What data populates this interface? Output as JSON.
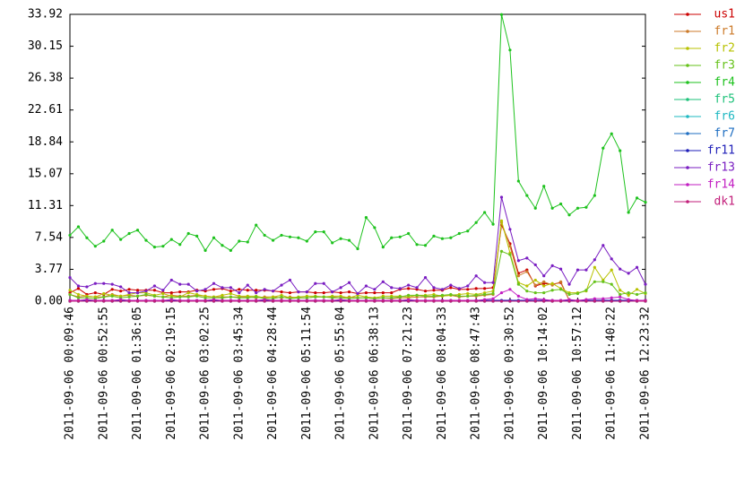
{
  "chart_data": {
    "type": "line",
    "categories": [
      "2011-09-06 00:09:46",
      null,
      null,
      null,
      "2011-09-06 00:52:55",
      null,
      null,
      null,
      "2011-09-06 01:36:05",
      null,
      null,
      null,
      "2011-09-06 02:19:15",
      null,
      null,
      null,
      "2011-09-06 03:02:25",
      null,
      null,
      null,
      "2011-09-06 03:45:34",
      null,
      null,
      null,
      "2011-09-06 04:28:44",
      null,
      null,
      null,
      "2011-09-06 05:11:54",
      null,
      null,
      null,
      "2011-09-06 05:55:04",
      null,
      null,
      null,
      "2011-09-06 06:38:13",
      null,
      null,
      null,
      "2011-09-06 07:21:23",
      null,
      null,
      null,
      "2011-09-06 08:04:33",
      null,
      null,
      null,
      "2011-09-06 08:47:43",
      null,
      null,
      null,
      "2011-09-06 09:30:52",
      null,
      null,
      null,
      "2011-09-06 10:14:02",
      null,
      null,
      null,
      "2011-09-06 10:57:12",
      null,
      null,
      null,
      "2011-09-06 11:40:22",
      null,
      null,
      null,
      "2011-09-06 12:23:32"
    ],
    "ylim": [
      0,
      33.92
    ],
    "yticks": [
      {
        "value": 0,
        "label": "0.00"
      },
      3.77,
      7.54,
      11.31,
      15.07,
      18.84,
      22.61,
      26.38,
      30.15,
      33.92
    ],
    "legend": "right",
    "series": [
      {
        "name": "us1",
        "color": "#cc0000",
        "values": [
          1.0,
          1.5,
          0.8,
          1.0,
          0.8,
          1.4,
          1.2,
          1.4,
          1.3,
          1.3,
          1.3,
          1.0,
          1.0,
          1.1,
          1.1,
          1.3,
          1.2,
          1.4,
          1.5,
          1.2,
          1.4,
          1.3,
          1.3,
          1.3,
          1.2,
          1.1,
          1.0,
          1.1,
          1.1,
          1.0,
          1.0,
          1.1,
          1.0,
          1.1,
          0.9,
          1.0,
          1.0,
          1.0,
          1.0,
          1.4,
          1.5,
          1.4,
          1.2,
          1.3,
          1.3,
          1.6,
          1.4,
          1.4,
          1.5,
          1.5,
          1.6,
          9.0,
          6.8,
          3.3,
          3.7,
          1.8,
          2.1,
          2.0,
          2.2,
          0.1,
          0.1,
          0.1,
          0.1,
          0.1,
          0.1,
          0.1,
          0.1,
          0.1,
          0.1
        ]
      },
      {
        "name": "fr1",
        "color": "#cc7a29",
        "values": [
          0.8,
          0.5,
          0.6,
          0.5,
          0.5,
          0.8,
          0.6,
          0.7,
          0.6,
          0.7,
          0.6,
          0.5,
          0.7,
          0.6,
          0.6,
          0.7,
          0.6,
          0.5,
          0.5,
          0.5,
          0.5,
          0.5,
          0.4,
          0.5,
          0.5,
          0.4,
          0.5,
          0.4,
          0.4,
          0.5,
          0.5,
          0.5,
          0.4,
          0.5,
          0.4,
          0.4,
          0.3,
          0.4,
          0.3,
          0.4,
          0.4,
          0.5,
          0.5,
          0.5,
          0.6,
          0.7,
          0.5,
          0.6,
          0.6,
          0.7,
          0.8,
          9.3,
          6.5,
          3.0,
          3.5,
          1.9,
          2.3,
          1.9,
          2.3,
          0.1,
          0.1,
          0.1,
          0.1,
          0.1,
          0.1,
          0.1,
          0.1,
          0.1,
          0.1
        ]
      },
      {
        "name": "fr2",
        "color": "#b8c200",
        "values": [
          1.3,
          0.8,
          0.6,
          0.5,
          0.9,
          0.7,
          0.6,
          0.8,
          1.0,
          1.0,
          0.7,
          0.9,
          0.6,
          0.5,
          1.0,
          0.8,
          0.6,
          0.5,
          0.7,
          0.9,
          0.6,
          0.6,
          0.6,
          0.4,
          0.5,
          0.7,
          0.4,
          0.5,
          0.6,
          0.6,
          0.5,
          0.6,
          0.6,
          0.4,
          0.7,
          0.5,
          0.4,
          0.6,
          0.6,
          0.6,
          0.5,
          0.7,
          0.7,
          0.8,
          0.6,
          0.7,
          0.8,
          0.9,
          0.8,
          1.0,
          1.2,
          9.5,
          5.7,
          2.2,
          1.8,
          2.5,
          1.8,
          2.1,
          1.5,
          1.0,
          1.0,
          1.2,
          4.0,
          2.5,
          3.7,
          1.3,
          0.7,
          1.4,
          0.9
        ]
      },
      {
        "name": "fr3",
        "color": "#66c21a",
        "values": [
          0.8,
          0.4,
          0.4,
          0.3,
          0.5,
          0.6,
          0.4,
          0.5,
          0.6,
          0.8,
          0.6,
          0.5,
          0.4,
          0.5,
          0.5,
          0.6,
          0.4,
          0.4,
          0.4,
          0.5,
          0.4,
          0.4,
          0.5,
          0.3,
          0.3,
          0.5,
          0.3,
          0.4,
          0.4,
          0.5,
          0.5,
          0.4,
          0.4,
          0.3,
          0.4,
          0.4,
          0.3,
          0.4,
          0.4,
          0.5,
          0.7,
          0.7,
          0.6,
          0.6,
          0.7,
          0.8,
          0.6,
          0.6,
          0.7,
          0.8,
          0.9,
          5.9,
          5.5,
          2.0,
          1.2,
          1.0,
          1.0,
          1.3,
          1.4,
          0.8,
          0.9,
          1.3,
          2.3,
          2.3,
          2.0,
          0.8,
          1.0,
          0.8,
          1.0
        ]
      },
      {
        "name": "fr4",
        "color": "#1ec21e",
        "values": [
          7.8,
          8.8,
          7.5,
          6.5,
          7.1,
          8.4,
          7.3,
          8.0,
          8.4,
          7.2,
          6.4,
          6.5,
          7.3,
          6.7,
          8.0,
          7.7,
          6.0,
          7.5,
          6.6,
          6.0,
          7.1,
          7.0,
          9.0,
          7.8,
          7.2,
          7.8,
          7.6,
          7.5,
          7.1,
          8.2,
          8.2,
          6.9,
          7.4,
          7.2,
          6.2,
          9.9,
          8.7,
          6.4,
          7.5,
          7.6,
          8.0,
          6.7,
          6.6,
          7.7,
          7.4,
          7.5,
          8.0,
          8.3,
          9.3,
          10.5,
          9.1,
          33.9,
          29.7,
          14.2,
          12.5,
          11.0,
          13.6,
          11.0,
          11.5,
          10.2,
          11.0,
          11.1,
          12.5,
          18.1,
          19.8,
          17.8,
          10.5,
          12.2,
          11.7
        ]
      },
      {
        "name": "fr5",
        "color": "#1ec27a",
        "values": [
          0,
          0,
          0,
          0,
          0,
          0,
          0,
          0,
          0,
          0,
          0,
          0,
          0,
          0,
          0,
          0,
          0,
          0,
          0,
          0,
          0,
          0,
          0,
          0,
          0,
          0,
          0,
          0,
          0,
          0,
          0,
          0,
          0,
          0,
          0,
          0,
          0,
          0,
          0,
          0,
          0,
          0,
          0,
          0,
          0,
          0,
          0,
          0,
          0,
          0,
          0,
          0,
          0,
          0,
          0,
          0,
          0,
          0,
          0,
          0,
          0,
          0,
          0,
          0,
          0,
          0,
          0,
          0,
          0
        ]
      },
      {
        "name": "fr6",
        "color": "#1eb8c2",
        "values": [
          0,
          0,
          0,
          0,
          0,
          0,
          0,
          0,
          0,
          0,
          0,
          0,
          0,
          0,
          0,
          0,
          0,
          0,
          0,
          0,
          0,
          0,
          0,
          0,
          0,
          0,
          0,
          0,
          0,
          0,
          0,
          0,
          0,
          0,
          0,
          0,
          0,
          0,
          0,
          0,
          0,
          0,
          0,
          0,
          0,
          0,
          0,
          0,
          0,
          0,
          0,
          0,
          0,
          0,
          0,
          0,
          0,
          0,
          0,
          0,
          0,
          0,
          0,
          0,
          0,
          0,
          0,
          0,
          0
        ]
      },
      {
        "name": "fr7",
        "color": "#1e6ec2",
        "values": [
          0,
          0,
          0,
          0,
          0,
          0,
          0,
          0,
          0,
          0,
          0,
          0,
          0,
          0,
          0,
          0,
          0,
          0,
          0,
          0,
          0,
          0,
          0,
          0,
          0,
          0,
          0,
          0,
          0,
          0,
          0,
          0,
          0,
          0,
          0,
          0,
          0,
          0,
          0,
          0,
          0,
          0,
          0,
          0,
          0,
          0,
          0,
          0,
          0,
          0,
          0,
          0,
          0,
          0,
          0,
          0,
          0,
          0,
          0,
          0,
          0,
          0,
          0,
          0,
          0,
          0,
          0,
          0,
          0
        ]
      },
      {
        "name": "fr11",
        "color": "#1e1eb8",
        "values": [
          0.1,
          0.1,
          0.1,
          0.1,
          0.1,
          0.1,
          0.1,
          0.1,
          0.1,
          0.1,
          0.1,
          0.1,
          0.1,
          0.1,
          0.1,
          0.1,
          0.1,
          0.1,
          0.1,
          0.1,
          0.1,
          0.1,
          0.1,
          0.1,
          0.1,
          0.1,
          0.1,
          0.1,
          0.1,
          0.1,
          0.1,
          0.1,
          0.1,
          0.1,
          0.1,
          0.1,
          0.1,
          0.1,
          0.1,
          0.1,
          0.1,
          0.1,
          0.1,
          0.1,
          0.1,
          0.1,
          0.1,
          0.1,
          0.1,
          0.1,
          0.1,
          0.1,
          0.1,
          0.1,
          0.1,
          0.1,
          0.1,
          0.1,
          0.1,
          0.1,
          0.1,
          0.1,
          0.1,
          0.1,
          0.1,
          0.1,
          0.1,
          0.1,
          0.1
        ]
      },
      {
        "name": "fr13",
        "color": "#7a1ec2",
        "values": [
          2.8,
          1.8,
          1.7,
          2.1,
          2.1,
          2.0,
          1.7,
          1.0,
          1.0,
          1.2,
          1.8,
          1.3,
          2.5,
          2.0,
          2.0,
          1.2,
          1.4,
          2.1,
          1.6,
          1.6,
          1.0,
          1.9,
          1.0,
          1.4,
          1.2,
          1.9,
          2.5,
          1.1,
          1.1,
          2.1,
          2.1,
          1.1,
          1.6,
          2.2,
          0.9,
          1.8,
          1.4,
          2.3,
          1.6,
          1.5,
          1.9,
          1.6,
          2.8,
          1.6,
          1.4,
          1.9,
          1.5,
          1.8,
          3.0,
          2.2,
          2.2,
          12.3,
          8.5,
          4.8,
          5.1,
          4.3,
          3.0,
          4.2,
          3.8,
          2.0,
          3.7,
          3.7,
          4.9,
          6.6,
          5.0,
          3.8,
          3.3,
          4.0,
          2.0
        ]
      },
      {
        "name": "fr14",
        "color": "#c21ec2",
        "values": [
          0.1,
          0.1,
          0.2,
          0.1,
          0.1,
          0.1,
          0.2,
          0.1,
          0.1,
          0.1,
          0.1,
          0.1,
          0.2,
          0.1,
          0.1,
          0.1,
          0.1,
          0.2,
          0.1,
          0.1,
          0.1,
          0.1,
          0.1,
          0.2,
          0.1,
          0.1,
          0.1,
          0.1,
          0.1,
          0.1,
          0.1,
          0.1,
          0.2,
          0.1,
          0.1,
          0.1,
          0.1,
          0.1,
          0.1,
          0.1,
          0.2,
          0.1,
          0.1,
          0.1,
          0.1,
          0.1,
          0.1,
          0.1,
          0.1,
          0.2,
          0.3,
          1.0,
          1.4,
          0.6,
          0.2,
          0.3,
          0.2,
          0.1,
          0.1,
          0.2,
          0.1,
          0.2,
          0.3,
          0.3,
          0.4,
          0.5,
          0.2,
          0.1,
          0.1
        ]
      },
      {
        "name": "dk1",
        "color": "#c21e7a",
        "values": [
          0,
          0,
          0,
          0,
          0,
          0,
          0,
          0,
          0,
          0,
          0,
          0,
          0,
          0,
          0,
          0,
          0,
          0,
          0,
          0,
          0,
          0,
          0,
          0,
          0,
          0,
          0,
          0,
          0,
          0,
          0,
          0,
          0,
          0,
          0,
          0,
          0,
          0,
          0,
          0,
          0,
          0,
          0,
          0,
          0,
          0,
          0,
          0,
          0,
          0,
          0,
          0,
          0,
          0,
          0,
          0,
          0,
          0,
          0,
          0,
          0,
          0,
          0,
          0,
          0,
          0,
          0,
          0,
          0
        ]
      }
    ]
  }
}
